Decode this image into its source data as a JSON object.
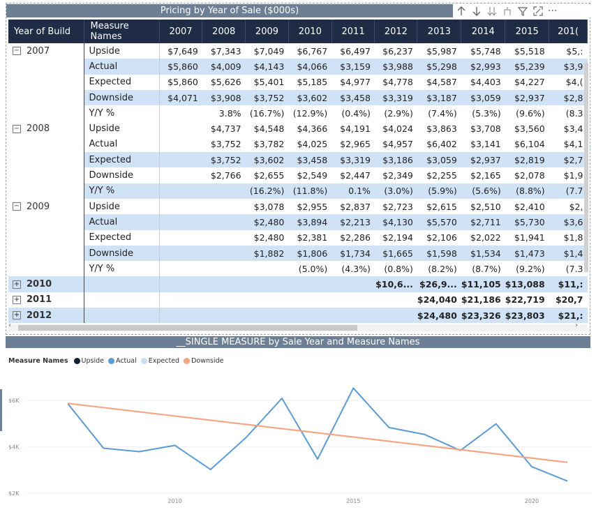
{
  "matrix_title": "Pricing by Year of Sale ($000s)",
  "toolbar_icons": [
    "arrow-up-icon",
    "arrow-down-icon",
    "double-arrow-down-icon",
    "expand-hierarchy-icon",
    "filter-icon",
    "focus-mode-icon",
    "more-options-icon"
  ],
  "toolbar_more": "···",
  "headers": [
    "Year of Build",
    "Measure Names",
    "2007",
    "2008",
    "2009",
    "2010",
    "2011",
    "2012",
    "2013",
    "2014",
    "2015",
    "201("
  ],
  "rows": [
    {
      "year": "2007",
      "exp": "−",
      "measure": "Upside",
      "band": false,
      "vals": [
        "$7,649",
        "$7,343",
        "$7,049",
        "$6,767",
        "$6,497",
        "$6,237",
        "$5,987",
        "$5,748",
        "$5,518",
        "$5,:"
      ]
    },
    {
      "year": "",
      "measure": "Actual",
      "band": true,
      "vals": [
        "$5,860",
        "$4,009",
        "$4,143",
        "$4,066",
        "$3,159",
        "$3,988",
        "$5,298",
        "$2,993",
        "$5,239",
        "$3,9"
      ]
    },
    {
      "year": "",
      "measure": "Expected",
      "band": false,
      "vals": [
        "$5,860",
        "$5,626",
        "$5,401",
        "$5,185",
        "$4,977",
        "$4,778",
        "$4,587",
        "$4,403",
        "$4,227",
        "$4,("
      ]
    },
    {
      "year": "",
      "measure": "Downside",
      "band": true,
      "vals": [
        "$4,071",
        "$3,908",
        "$3,752",
        "$3,602",
        "$3,458",
        "$3,319",
        "$3,187",
        "$3,059",
        "$2,937",
        "$2,8"
      ]
    },
    {
      "year": "",
      "measure": "Y/Y %",
      "band": false,
      "vals": [
        "",
        "3.8%",
        "(16.7%)",
        "(12.9%)",
        "(0.4%)",
        "(2.9%)",
        "(7.4%)",
        "(5.3%)",
        "(9.6%)",
        "(8.3"
      ]
    },
    {
      "year": "2008",
      "exp": "−",
      "measure": "Upside",
      "band": false,
      "vals": [
        "",
        "$4,737",
        "$4,548",
        "$4,366",
        "$4,191",
        "$4,024",
        "$3,863",
        "$3,708",
        "$3,560",
        "$3,4"
      ]
    },
    {
      "year": "",
      "measure": "Actual",
      "band": false,
      "vals": [
        "",
        "$3,752",
        "$3,782",
        "$4,025",
        "$2,965",
        "$4,957",
        "$6,402",
        "$3,141",
        "$6,104",
        "$4,1"
      ]
    },
    {
      "year": "",
      "measure": "Expected",
      "band": true,
      "vals": [
        "",
        "$3,752",
        "$3,602",
        "$3,458",
        "$3,319",
        "$3,186",
        "$3,059",
        "$2,937",
        "$2,819",
        "$2,7"
      ]
    },
    {
      "year": "",
      "measure": "Downside",
      "band": false,
      "vals": [
        "",
        "$2,766",
        "$2,655",
        "$2,549",
        "$2,447",
        "$2,349",
        "$2,255",
        "$2,165",
        "$2,078",
        "$1,9"
      ]
    },
    {
      "year": "",
      "measure": "Y/Y %",
      "band": true,
      "vals": [
        "",
        "",
        "(16.2%)",
        "(11.8%)",
        "0.1%",
        "(3.0%)",
        "(5.9%)",
        "(5.6%)",
        "(8.8%)",
        "(7.7"
      ]
    },
    {
      "year": "2009",
      "exp": "−",
      "measure": "Upside",
      "band": false,
      "vals": [
        "",
        "",
        "$3,078",
        "$2,955",
        "$2,837",
        "$2,723",
        "$2,615",
        "$2,510",
        "$2,410",
        "$2,"
      ]
    },
    {
      "year": "",
      "measure": "Actual",
      "band": true,
      "vals": [
        "",
        "",
        "$2,480",
        "$3,894",
        "$2,213",
        "$4,130",
        "$5,570",
        "$2,711",
        "$5,730",
        "$3,6"
      ]
    },
    {
      "year": "",
      "measure": "Expected",
      "band": false,
      "vals": [
        "",
        "",
        "$2,480",
        "$2,381",
        "$2,286",
        "$2,194",
        "$2,106",
        "$2,022",
        "$1,941",
        "$1,8"
      ]
    },
    {
      "year": "",
      "measure": "Downside",
      "band": true,
      "vals": [
        "",
        "",
        "$1,882",
        "$1,806",
        "$1,734",
        "$1,665",
        "$1,598",
        "$1,534",
        "$1,473",
        "$1,4"
      ]
    },
    {
      "year": "",
      "measure": "Y/Y %",
      "band": false,
      "vals": [
        "",
        "",
        "",
        "(5.0%)",
        "(4.3%)",
        "(0.8%)",
        "(8.2%)",
        "(8.7%)",
        "(9.2%)",
        "(7.3"
      ]
    }
  ],
  "collapsed_rows": [
    {
      "year": "2010",
      "exp": "+",
      "band": true,
      "vals": [
        "",
        "",
        "",
        "",
        "",
        "$10,6...",
        "$26,9...",
        "$11,105",
        "$13,088",
        "$11,:"
      ]
    },
    {
      "year": "2011",
      "exp": "+",
      "band": false,
      "vals": [
        "",
        "",
        "",
        "",
        "",
        "",
        "$24,040",
        "$21,186",
        "$22,719",
        "$20,7"
      ]
    },
    {
      "year": "2012",
      "exp": "+",
      "band": true,
      "vals": [
        "",
        "",
        "",
        "",
        "",
        "",
        "$24,480",
        "$23,326",
        "$23,803",
        "$21,:"
      ]
    }
  ],
  "chart_title": "__SINGLE MEASURE by Sale Year and Measure Names",
  "legend": {
    "title": "Measure Names",
    "items": [
      {
        "name": "Upside",
        "color": "#111e33"
      },
      {
        "name": "Actual",
        "color": "#5b9bd5"
      },
      {
        "name": "Expected",
        "color": "#c9dcf0"
      },
      {
        "name": "Downside",
        "color": "#f4a582"
      }
    ]
  },
  "chart_data": {
    "type": "line",
    "xlim": [
      2005.1,
      2021.8
    ],
    "ylim": [
      2000,
      6000
    ],
    "y_ticks": [
      {
        "v": 6000,
        "label": "$6K"
      },
      {
        "v": 4000,
        "label": "$4K"
      },
      {
        "v": 2000,
        "label": "$2K"
      }
    ],
    "x_ticks": [
      {
        "v": 2010,
        "label": "2010"
      },
      {
        "v": 2015,
        "label": "2015"
      },
      {
        "v": 2020,
        "label": "2020"
      }
    ],
    "series": [
      {
        "name": "Actual",
        "color": "#5b9bd5",
        "x": [
          2007,
          2008,
          2009,
          2010,
          2011,
          2012,
          2013,
          2014,
          2015,
          2016,
          2017,
          2018,
          2019,
          2020,
          2021
        ],
        "y": [
          5860,
          3940,
          3790,
          4060,
          3020,
          4410,
          6090,
          3470,
          6530,
          4830,
          4530,
          3840,
          4990,
          3140,
          2520
        ]
      },
      {
        "name": "Downside",
        "color": "#f4a582",
        "x": [
          2007,
          2021
        ],
        "y": [
          5870,
          3330
        ]
      }
    ]
  }
}
